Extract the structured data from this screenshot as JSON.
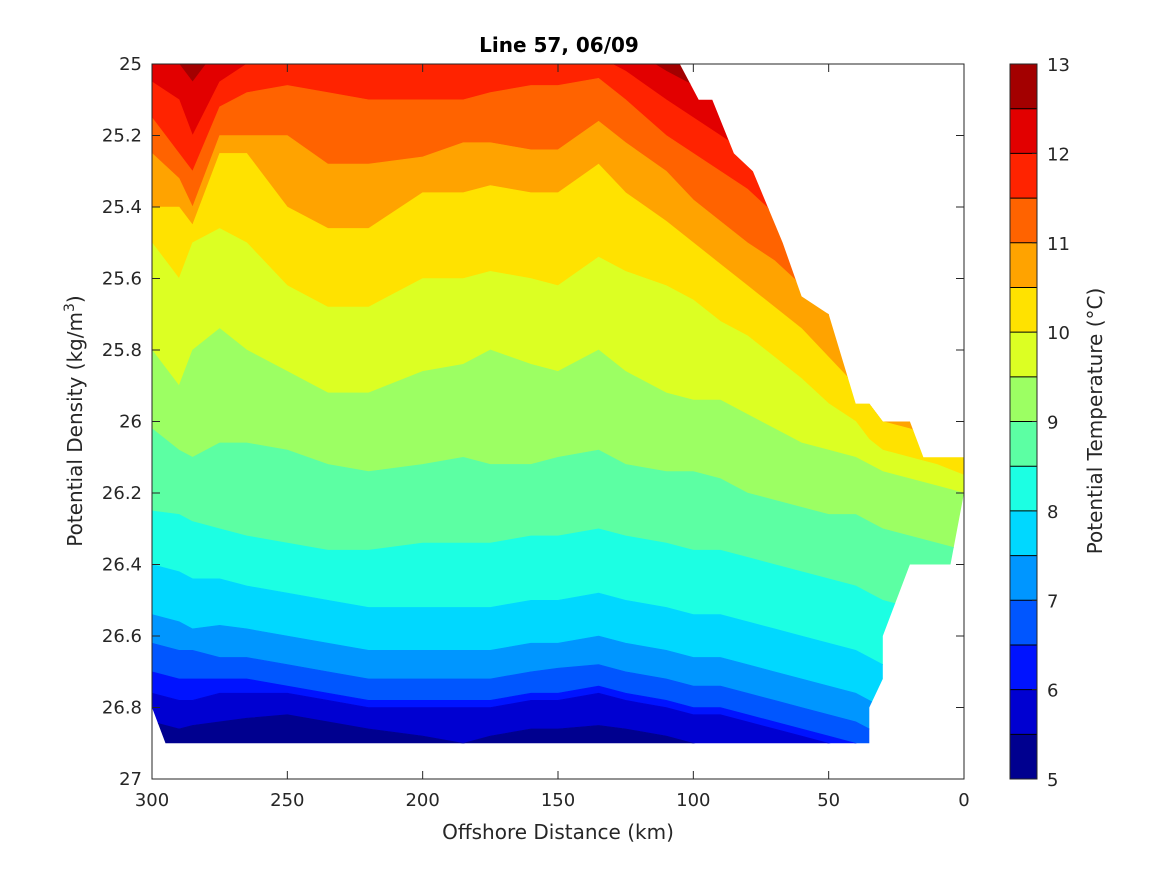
{
  "chart_data": {
    "type": "contourf",
    "title": "Line 57, 06/09",
    "xlabel": "Offshore Distance (km)",
    "ylabel_main": "Potential Density (kg/m",
    "ylabel_sup": "3",
    "ylabel_close": ")",
    "x_reversed": true,
    "y_reversed": true,
    "xlim": [
      0,
      300
    ],
    "ylim": [
      25,
      27
    ],
    "xticks": [
      300,
      250,
      200,
      150,
      100,
      50,
      0
    ],
    "yticks": [
      25,
      25.2,
      25.4,
      25.6,
      25.8,
      26,
      26.2,
      26.4,
      26.6,
      26.8,
      27
    ],
    "colorbar": {
      "label": "Potential Temperature (°C)",
      "range": [
        5,
        13
      ],
      "step": 0.5,
      "ticks": [
        5,
        6,
        7,
        8,
        9,
        10,
        11,
        12,
        13
      ],
      "colors": [
        "#00008f",
        "#0000d1",
        "#0013ff",
        "#0056ff",
        "#0096ff",
        "#00d8ff",
        "#1cffe3",
        "#5cffa3",
        "#9cff63",
        "#dcff23",
        "#ffe200",
        "#ffa300",
        "#ff6300",
        "#ff2300",
        "#e20000",
        "#a30000"
      ]
    },
    "boundary": {
      "data_top": [
        [
          300,
          25
        ],
        [
          105,
          25
        ],
        [
          98,
          25.1
        ],
        [
          93,
          25.1
        ],
        [
          85,
          25.25
        ],
        [
          78,
          25.3
        ],
        [
          67,
          25.5
        ],
        [
          60,
          25.65
        ],
        [
          50,
          25.7
        ],
        [
          40,
          25.95
        ],
        [
          35,
          25.95
        ],
        [
          30,
          26
        ],
        [
          20,
          26
        ],
        [
          15,
          26.1
        ],
        [
          0,
          26.1
        ]
      ],
      "data_bottom": [
        [
          0,
          26.2
        ],
        [
          5,
          26.4
        ],
        [
          20,
          26.4
        ],
        [
          30,
          26.6
        ],
        [
          30,
          26.72
        ],
        [
          35,
          26.8
        ],
        [
          35,
          26.9
        ],
        [
          295,
          26.9
        ],
        [
          300,
          26.8
        ]
      ]
    },
    "isotherm_depths": {
      "x": [
        300,
        290,
        285,
        275,
        265,
        250,
        235,
        220,
        200,
        185,
        175,
        160,
        150,
        135,
        125,
        110,
        100,
        90,
        80,
        70,
        60,
        50,
        40,
        35,
        30,
        20,
        10,
        0
      ],
      "levels": [
        {
          "T": 12.5,
          "y": [
            24.95,
            25.0,
            25.05,
            24.95,
            24.9,
            24.9,
            24.9,
            24.9,
            24.9,
            24.9,
            24.9,
            24.9,
            24.9,
            24.9,
            24.95,
            25.02,
            25.06,
            25.1,
            25.15,
            25.2,
            25.3,
            25.4,
            25.5,
            25.6,
            25.7,
            25.75,
            25.8,
            25.85
          ]
        },
        {
          "T": 12.0,
          "y": [
            25.05,
            25.1,
            25.2,
            25.05,
            25.0,
            24.98,
            24.98,
            25.0,
            25.0,
            25.0,
            24.99,
            24.98,
            24.98,
            24.98,
            25.02,
            25.1,
            25.15,
            25.2,
            25.25,
            25.3,
            25.4,
            25.5,
            25.6,
            25.7,
            25.78,
            25.82,
            25.88,
            25.92
          ]
        },
        {
          "T": 11.5,
          "y": [
            25.15,
            25.25,
            25.3,
            25.12,
            25.08,
            25.06,
            25.08,
            25.1,
            25.1,
            25.1,
            25.08,
            25.06,
            25.06,
            25.04,
            25.1,
            25.2,
            25.25,
            25.3,
            25.35,
            25.42,
            25.5,
            25.6,
            25.7,
            25.8,
            25.85,
            25.9,
            25.95,
            25.98
          ]
        },
        {
          "T": 11.0,
          "y": [
            25.25,
            25.32,
            25.4,
            25.2,
            25.2,
            25.2,
            25.28,
            25.28,
            25.26,
            25.22,
            25.22,
            25.24,
            25.24,
            25.16,
            25.22,
            25.3,
            25.38,
            25.44,
            25.5,
            25.55,
            25.62,
            25.7,
            25.8,
            25.88,
            25.92,
            25.96,
            26.0,
            26.05
          ]
        },
        {
          "T": 10.5,
          "y": [
            25.4,
            25.4,
            25.45,
            25.25,
            25.25,
            25.4,
            25.46,
            25.46,
            25.36,
            25.36,
            25.34,
            25.36,
            25.36,
            25.28,
            25.36,
            25.44,
            25.5,
            25.56,
            25.62,
            25.68,
            25.74,
            25.82,
            25.9,
            25.95,
            26.0,
            26.02,
            26.05,
            26.08
          ]
        },
        {
          "T": 10.0,
          "y": [
            25.5,
            25.6,
            25.5,
            25.46,
            25.5,
            25.62,
            25.68,
            25.68,
            25.6,
            25.6,
            25.58,
            25.6,
            25.62,
            25.54,
            25.58,
            25.62,
            25.66,
            25.72,
            25.76,
            25.82,
            25.88,
            25.95,
            26.0,
            26.05,
            26.08,
            26.1,
            26.12,
            26.15
          ]
        },
        {
          "T": 9.5,
          "y": [
            25.8,
            25.9,
            25.8,
            25.74,
            25.8,
            25.86,
            25.92,
            25.92,
            25.86,
            25.84,
            25.8,
            25.84,
            25.86,
            25.8,
            25.86,
            25.92,
            25.94,
            25.94,
            25.98,
            26.02,
            26.06,
            26.08,
            26.1,
            26.12,
            26.14,
            26.16,
            26.18,
            26.2
          ]
        },
        {
          "T": 9.0,
          "y": [
            26.02,
            26.08,
            26.1,
            26.06,
            26.06,
            26.08,
            26.12,
            26.14,
            26.12,
            26.1,
            26.12,
            26.12,
            26.1,
            26.08,
            26.12,
            26.14,
            26.14,
            26.16,
            26.2,
            26.22,
            26.24,
            26.26,
            26.26,
            26.28,
            26.3,
            26.32,
            26.34,
            26.36
          ]
        },
        {
          "T": 8.5,
          "y": [
            26.25,
            26.26,
            26.28,
            26.3,
            26.32,
            26.34,
            26.36,
            26.36,
            26.34,
            26.34,
            26.34,
            26.32,
            26.32,
            26.3,
            26.32,
            26.34,
            26.36,
            26.36,
            26.38,
            26.4,
            26.42,
            26.44,
            26.46,
            26.48,
            26.5,
            26.52,
            26.54,
            26.56
          ]
        },
        {
          "T": 8.0,
          "y": [
            26.4,
            26.42,
            26.44,
            26.44,
            26.46,
            26.48,
            26.5,
            26.52,
            26.52,
            26.52,
            26.52,
            26.5,
            26.5,
            26.48,
            26.5,
            26.52,
            26.54,
            26.54,
            26.56,
            26.58,
            26.6,
            26.62,
            26.64,
            26.66,
            26.68,
            26.7,
            26.72,
            26.74
          ]
        },
        {
          "T": 7.5,
          "y": [
            26.54,
            26.56,
            26.58,
            26.57,
            26.58,
            26.6,
            26.62,
            26.64,
            26.64,
            26.64,
            26.64,
            26.62,
            26.62,
            26.6,
            26.62,
            26.64,
            26.66,
            26.66,
            26.68,
            26.7,
            26.72,
            26.74,
            26.76,
            26.78,
            26.8,
            26.82,
            26.84,
            26.86
          ]
        },
        {
          "T": 7.0,
          "y": [
            26.62,
            26.64,
            26.64,
            26.66,
            26.66,
            26.68,
            26.7,
            26.72,
            26.72,
            26.72,
            26.72,
            26.7,
            26.69,
            26.68,
            26.7,
            26.72,
            26.74,
            26.74,
            26.76,
            26.78,
            26.8,
            26.82,
            26.84,
            26.86,
            26.88,
            26.9,
            26.92,
            26.94
          ]
        },
        {
          "T": 6.5,
          "y": [
            26.7,
            26.72,
            26.72,
            26.72,
            26.72,
            26.74,
            26.76,
            26.78,
            26.78,
            26.78,
            26.78,
            26.76,
            26.76,
            26.74,
            26.76,
            26.78,
            26.8,
            26.8,
            26.82,
            26.84,
            26.86,
            26.88,
            26.9,
            26.92,
            26.94,
            26.96,
            26.98,
            27.0
          ]
        },
        {
          "T": 6.0,
          "y": [
            26.76,
            26.78,
            26.78,
            26.76,
            26.76,
            26.76,
            26.78,
            26.8,
            26.8,
            26.8,
            26.8,
            26.78,
            26.78,
            26.76,
            26.78,
            26.8,
            26.82,
            26.82,
            26.84,
            26.86,
            26.88,
            26.9,
            26.92,
            26.94,
            26.96,
            26.98,
            27.0,
            27.02
          ]
        },
        {
          "T": 5.5,
          "y": [
            26.84,
            26.86,
            26.85,
            26.84,
            26.83,
            26.82,
            26.84,
            26.86,
            26.88,
            26.9,
            26.88,
            26.86,
            26.86,
            26.85,
            26.86,
            26.88,
            26.9,
            26.92,
            26.94,
            26.96,
            26.98,
            27.0,
            27.02,
            27.04,
            27.06,
            27.08,
            27.1,
            27.12
          ]
        }
      ],
      "top_color_index": 15,
      "bottom_color_index": 0
    }
  }
}
